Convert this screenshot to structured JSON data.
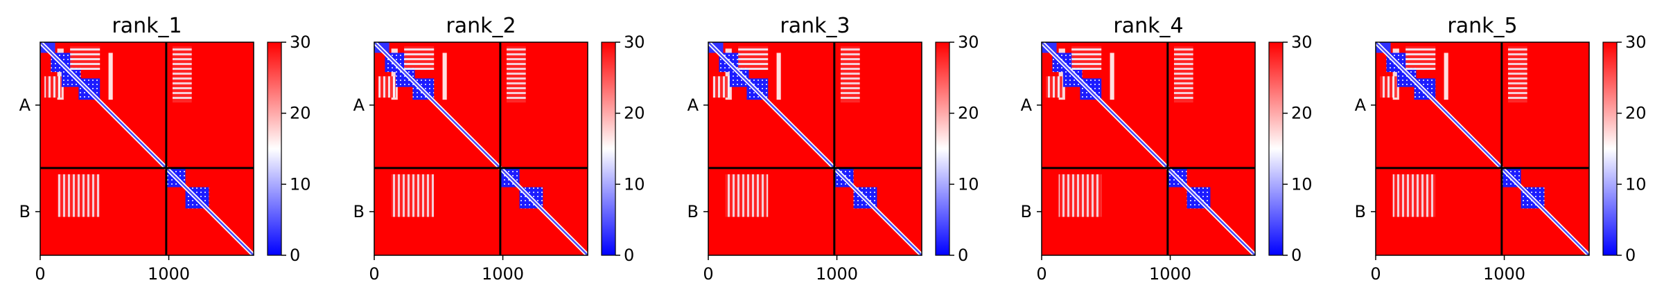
{
  "chart_data": {
    "type": "heatmap",
    "colormap": {
      "low": "#0000ff",
      "mid": "#ffffff",
      "high": "#ff0000"
    },
    "colorbar": {
      "min": 0,
      "max": 30,
      "ticks": [
        "0",
        "10",
        "20",
        "30"
      ],
      "tick_values": [
        0,
        10,
        20,
        30
      ]
    },
    "x_ticks": [
      "0",
      "1000"
    ],
    "x_tick_values": [
      0,
      1000
    ],
    "y_ticks": [
      "A",
      "B"
    ],
    "total_length": 1660,
    "chains": [
      {
        "name": "A",
        "start": 0,
        "end": 980
      },
      {
        "name": "B",
        "start": 980,
        "end": 1660
      }
    ],
    "panels": [
      {
        "title": "rank_1"
      },
      {
        "title": "rank_2"
      },
      {
        "title": "rank_3"
      },
      {
        "title": "rank_4"
      },
      {
        "title": "rank_5"
      }
    ]
  }
}
